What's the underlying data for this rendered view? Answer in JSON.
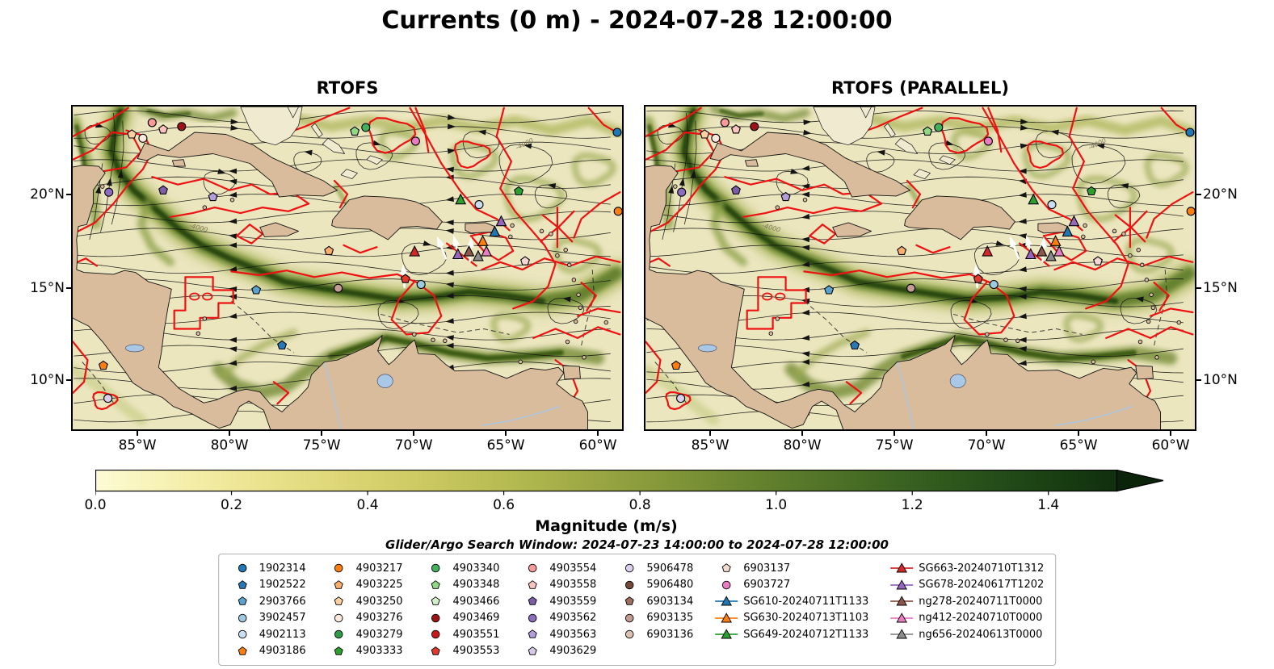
{
  "figure": {
    "title": "Currents (0 m) - 2024-07-28 12:00:00"
  },
  "panels": [
    {
      "title": "RTOFS"
    },
    {
      "title": "RTOFS (PARALLEL)"
    }
  ],
  "axes": {
    "x_ticks": [
      {
        "label": "85°W",
        "lon": -85
      },
      {
        "label": "80°W",
        "lon": -80
      },
      {
        "label": "75°W",
        "lon": -75
      },
      {
        "label": "70°W",
        "lon": -70
      },
      {
        "label": "65°W",
        "lon": -65
      },
      {
        "label": "60°W",
        "lon": -60
      }
    ],
    "y_ticks": [
      {
        "label": "10°N",
        "lat": 10
      },
      {
        "label": "15°N",
        "lat": 15
      },
      {
        "label": "20°N",
        "lat": 20
      }
    ]
  },
  "colorbar": {
    "label": "Magnitude (m/s)",
    "vmin": 0,
    "vmax": 1.5,
    "ticks": [
      {
        "label": "0.0",
        "value": 0.0
      },
      {
        "label": "0.2",
        "value": 0.2
      },
      {
        "label": "0.4",
        "value": 0.4
      },
      {
        "label": "0.6",
        "value": 0.6
      },
      {
        "label": "0.8",
        "value": 0.8
      },
      {
        "label": "1.0",
        "value": 1.0
      },
      {
        "label": "1.2",
        "value": 1.2
      },
      {
        "label": "1.4",
        "value": 1.4
      }
    ],
    "colors": [
      "#fdfbd4",
      "#f5efad",
      "#eae28c",
      "#dcd473",
      "#c9c75f",
      "#b2b84f",
      "#97a441",
      "#7b9136",
      "#5f7e2c",
      "#456b24",
      "#2f581d",
      "#1d4415",
      "#102f0e"
    ],
    "arrow_color": "#0a2309"
  },
  "legend": {
    "title": "Glider/Argo Search Window: 2024-07-23 14:00:00 to 2024-07-28 12:00:00",
    "columns": [
      [
        {
          "label": "1902314",
          "marker": "circle",
          "color": "#1f77b4"
        },
        {
          "label": "1902522",
          "marker": "pentagon",
          "color": "#2878b5"
        },
        {
          "label": "2903766",
          "marker": "pentagon",
          "color": "#5ba3cf"
        },
        {
          "label": "3902457",
          "marker": "circle",
          "color": "#9ecae1"
        },
        {
          "label": "4902113",
          "marker": "circle",
          "color": "#c9def0"
        },
        {
          "label": "4903186",
          "marker": "pentagon",
          "color": "#ff7f0e"
        }
      ],
      [
        {
          "label": "4903217",
          "marker": "circle",
          "color": "#ff7f0e"
        },
        {
          "label": "4903225",
          "marker": "pentagon",
          "color": "#fdae6b"
        },
        {
          "label": "4903250",
          "marker": "pentagon",
          "color": "#fdd0a2"
        },
        {
          "label": "4903276",
          "marker": "circle",
          "color": "#feeadd"
        },
        {
          "label": "4903279",
          "marker": "circle",
          "color": "#2e9b45"
        },
        {
          "label": "4903333",
          "marker": "pentagon",
          "color": "#2ca02c"
        }
      ],
      [
        {
          "label": "4903340",
          "marker": "circle",
          "color": "#43b05c"
        },
        {
          "label": "4903348",
          "marker": "pentagon",
          "color": "#90d883"
        },
        {
          "label": "4903466",
          "marker": "pentagon",
          "color": "#d3efcb"
        },
        {
          "label": "4903469",
          "marker": "circle",
          "color": "#9e1316"
        },
        {
          "label": "4903551",
          "marker": "circle",
          "color": "#c7181c"
        },
        {
          "label": "4903553",
          "marker": "pentagon",
          "color": "#e03a2f"
        }
      ],
      [
        {
          "label": "4903554",
          "marker": "circle",
          "color": "#fb9a99"
        },
        {
          "label": "4903558",
          "marker": "pentagon",
          "color": "#fbc4c0"
        },
        {
          "label": "4903559",
          "marker": "pentagon",
          "color": "#7b5ea7"
        },
        {
          "label": "4903562",
          "marker": "circle",
          "color": "#8d6dc0"
        },
        {
          "label": "4903563",
          "marker": "pentagon",
          "color": "#b39ddb"
        },
        {
          "label": "4903629",
          "marker": "pentagon",
          "color": "#d5c8ea"
        }
      ],
      [
        {
          "label": "5906478",
          "marker": "circle",
          "color": "#dcd0ef"
        },
        {
          "label": "5906480",
          "marker": "circle",
          "color": "#74493a"
        },
        {
          "label": "6903134",
          "marker": "pentagon",
          "color": "#9c6f5f"
        },
        {
          "label": "6903135",
          "marker": "circle",
          "color": "#c49c94"
        },
        {
          "label": "6903136",
          "marker": "circle",
          "color": "#dec1b5"
        }
      ],
      [
        {
          "label": "6903137",
          "marker": "pentagon",
          "color": "#f6d9d2"
        },
        {
          "label": "6903727",
          "marker": "circle",
          "color": "#e87dc4"
        },
        {
          "label": "SG610-20240711T1133",
          "marker": "triangle",
          "color": "#1f77b4",
          "line": true
        },
        {
          "label": "SG630-20240713T1103",
          "marker": "triangle",
          "color": "#ff7f0e",
          "line": true
        },
        {
          "label": "SG649-20240712T1133",
          "marker": "triangle",
          "color": "#2ca02c",
          "line": true
        }
      ],
      [
        {
          "label": "SG663-20240710T1312",
          "marker": "triangle",
          "color": "#d62728",
          "line": true
        },
        {
          "label": "SG678-20240617T1202",
          "marker": "triangle",
          "color": "#9467bd",
          "line": true
        },
        {
          "label": "ng278-20240711T0000",
          "marker": "triangle",
          "color": "#8c564b",
          "line": true
        },
        {
          "label": "ng412-20240710T0000",
          "marker": "triangle",
          "color": "#e87dc4",
          "line": true
        },
        {
          "label": "ng656-20240613T0000",
          "marker": "triangle",
          "color": "#8c8c8c",
          "line": true
        }
      ]
    ]
  },
  "map": {
    "depth_label": "-4000"
  },
  "chart_data": {
    "type": "map",
    "field": "ocean surface current magnitude",
    "units": "m/s",
    "depth": "0 m",
    "valid_time": "2024-07-28 12:00:00",
    "projection": "mercator",
    "extent": {
      "lon_min": -88.6,
      "lon_max": -58.6,
      "lat_min": 7.2,
      "lat_max": 24.6
    },
    "panels": [
      "RTOFS",
      "RTOFS (PARALLEL)"
    ],
    "colorbar_range": [
      0,
      1.5
    ],
    "floats": [
      {
        "label": "4903554",
        "lon": -84.2,
        "lat": 23.7,
        "marker": "circle",
        "color": "#fb9a99"
      },
      {
        "label": "4903558",
        "lon": -83.6,
        "lat": 23.35,
        "marker": "pentagon",
        "color": "#fbc4c0"
      },
      {
        "label": "4903469",
        "lon": -82.6,
        "lat": 23.5,
        "marker": "circle",
        "color": "#9e1316"
      },
      {
        "label": "4903250",
        "lon": -85.3,
        "lat": 23.1,
        "marker": "pentagon",
        "color": "#fdd0a2"
      },
      {
        "label": "4903276",
        "lon": -84.7,
        "lat": 22.9,
        "marker": "circle",
        "color": "#feeadd"
      },
      {
        "label": "4903348",
        "lon": -73.2,
        "lat": 23.25,
        "marker": "pentagon",
        "color": "#90d883"
      },
      {
        "label": "4903340",
        "lon": -72.6,
        "lat": 23.45,
        "marker": "circle",
        "color": "#43b05c"
      },
      {
        "label": "6903727",
        "lon": -69.9,
        "lat": 22.75,
        "marker": "circle",
        "color": "#e87dc4"
      },
      {
        "label": "1902314",
        "lon": -58.95,
        "lat": 23.2,
        "marker": "circle",
        "color": "#1f77b4"
      },
      {
        "label": "4903562",
        "lon": -86.55,
        "lat": 20.1,
        "marker": "circle",
        "color": "#8d6dc0"
      },
      {
        "label": "4903559",
        "lon": -83.6,
        "lat": 20.2,
        "marker": "pentagon",
        "color": "#7b5ea7"
      },
      {
        "label": "4903563",
        "lon": -80.9,
        "lat": 19.85,
        "marker": "pentagon",
        "color": "#b39ddb"
      },
      {
        "label": "SG649-20240712T1133",
        "lon": -67.45,
        "lat": 19.7,
        "marker": "triangle",
        "color": "#2ca02c"
      },
      {
        "label": "4902113",
        "lon": -66.45,
        "lat": 19.45,
        "marker": "circle",
        "color": "#c9def0"
      },
      {
        "label": "4903333",
        "lon": -64.3,
        "lat": 20.15,
        "marker": "pentagon",
        "color": "#2ca02c"
      },
      {
        "label": "4903217",
        "lon": -58.9,
        "lat": 19.1,
        "marker": "circle",
        "color": "#ff7f0e"
      },
      {
        "label": "SG678-20240617T1202",
        "lon": -65.25,
        "lat": 18.55,
        "marker": "triangle",
        "color": "#9467bd"
      },
      {
        "label": "SG610-20240711T1133",
        "lon": -65.6,
        "lat": 18.0,
        "marker": "triangle",
        "color": "#1f77b4"
      },
      {
        "label": "SG630-20240713T1103",
        "lon": -66.25,
        "lat": 17.5,
        "marker": "triangle",
        "color": "#ff7f0e"
      },
      {
        "label": "SG663-20240710T1312",
        "lon": -69.95,
        "lat": 16.95,
        "marker": "triangle",
        "color": "#d62728"
      },
      {
        "label": "SG678-20240617T1202",
        "lon": -67.6,
        "lat": 16.8,
        "marker": "triangle",
        "color": "#9467bd"
      },
      {
        "label": "ng278-20240711T0000",
        "lon": -67.0,
        "lat": 16.95,
        "marker": "triangle",
        "color": "#8c564b"
      },
      {
        "label": "ng656-20240613T0000",
        "lon": -66.5,
        "lat": 16.7,
        "marker": "triangle",
        "color": "#8c8c8c"
      },
      {
        "label": "ng412-20240710T0000",
        "lon": -66.05,
        "lat": 16.95,
        "marker": "triangle",
        "color": "#e87dc4"
      },
      {
        "label": "6903137",
        "lon": -63.95,
        "lat": 16.45,
        "marker": "pentagon",
        "color": "#f6d9d2"
      },
      {
        "label": "4903225",
        "lon": -74.6,
        "lat": 17.0,
        "marker": "pentagon",
        "color": "#fdae6b"
      },
      {
        "label": "6903135",
        "lon": -74.1,
        "lat": 15.0,
        "marker": "circle",
        "color": "#c49c94"
      },
      {
        "label": "4903553",
        "lon": -70.45,
        "lat": 15.5,
        "marker": "pentagon",
        "color": "#e03a2f"
      },
      {
        "label": "3902457",
        "lon": -69.6,
        "lat": 15.2,
        "marker": "circle",
        "color": "#9ecae1"
      },
      {
        "label": "2903766",
        "lon": -78.55,
        "lat": 14.9,
        "marker": "pentagon",
        "color": "#5ba3cf"
      },
      {
        "label": "1902522",
        "lon": -77.15,
        "lat": 11.9,
        "marker": "pentagon",
        "color": "#2878b5"
      },
      {
        "label": "4903186",
        "lon": -86.85,
        "lat": 10.8,
        "marker": "pentagon",
        "color": "#ff7f0e"
      },
      {
        "label": "5906478",
        "lon": -86.6,
        "lat": 9.0,
        "marker": "circle",
        "color": "#dcd0ef"
      }
    ]
  }
}
